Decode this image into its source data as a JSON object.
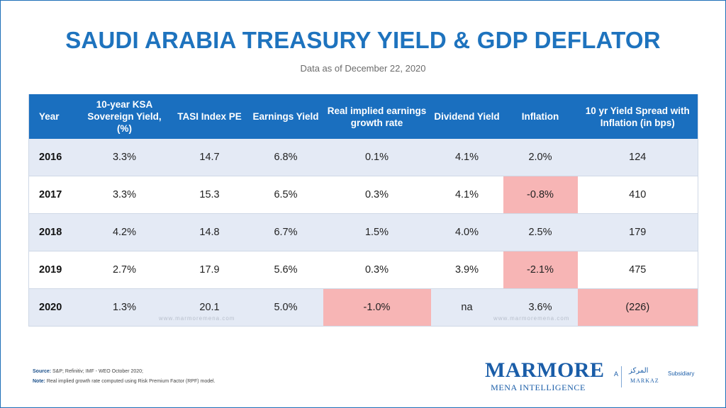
{
  "title": "SAUDI ARABIA TREASURY YIELD & GDP DEFLATOR",
  "subtitle": "Data as of December 22, 2020",
  "table": {
    "headers": [
      "Year",
      "10-year KSA Sovereign Yield, (%)",
      "TASI Index PE",
      "Earnings Yield",
      "Real implied earnings growth rate",
      "Dividend Yield",
      "Inflation",
      "10 yr Yield Spread with Inflation (in bps)"
    ],
    "rows": [
      [
        "2016",
        "3.3%",
        "14.7",
        "6.8%",
        "0.1%",
        "4.1%",
        "2.0%",
        "124"
      ],
      [
        "2017",
        "3.3%",
        "15.3",
        "6.5%",
        "0.3%",
        "4.1%",
        "-0.8%",
        "410"
      ],
      [
        "2018",
        "4.2%",
        "14.8",
        "6.7%",
        "1.5%",
        "4.0%",
        "2.5%",
        "179"
      ],
      [
        "2019",
        "2.7%",
        "17.9",
        "5.6%",
        "0.3%",
        "3.9%",
        "-2.1%",
        "475"
      ],
      [
        "2020",
        "1.3%",
        "20.1",
        "5.0%",
        "-1.0%",
        "na",
        "3.6%",
        "(226)"
      ]
    ]
  },
  "watermark": "www.marmoremena.com",
  "footnotes": {
    "source_label": "Source:",
    "source_text": " S&P; Refinitiv; IMF - WEO October 2020;",
    "note_label": "Note:",
    "note_text": " Real implied growth rate computed using Risk Premium Factor (RPF) model."
  },
  "logo": {
    "word": "MARMORE",
    "tagline": "MENA INTELLIGENCE",
    "a": "A",
    "parent_ar": "المركز",
    "parent_en": "MARKAZ",
    "subsidiary": "Subsidiary"
  },
  "colors": {
    "header_bg": "#1a6fbf",
    "title": "#1e73be",
    "shaded_row": "#e4eaf5",
    "negative_highlight": "#f7b5b5"
  }
}
